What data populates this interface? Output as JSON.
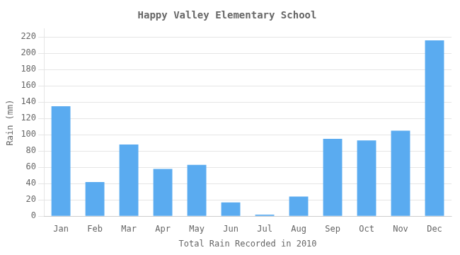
{
  "chart_data": {
    "type": "bar",
    "title": "Happy Valley Elementary School",
    "xlabel": "Total Rain Recorded in 2010",
    "ylabel": "Rain (mm)",
    "categories": [
      "Jan",
      "Feb",
      "Mar",
      "Apr",
      "May",
      "Jun",
      "Jul",
      "Aug",
      "Sep",
      "Oct",
      "Nov",
      "Dec"
    ],
    "values": [
      135,
      42,
      88,
      58,
      63,
      17,
      2,
      24,
      95,
      93,
      105,
      216
    ],
    "color": "#5aabf0",
    "ylim": [
      0,
      230
    ],
    "yticks": [
      0,
      20,
      40,
      60,
      80,
      100,
      120,
      140,
      160,
      180,
      200,
      220
    ],
    "grid": true
  }
}
